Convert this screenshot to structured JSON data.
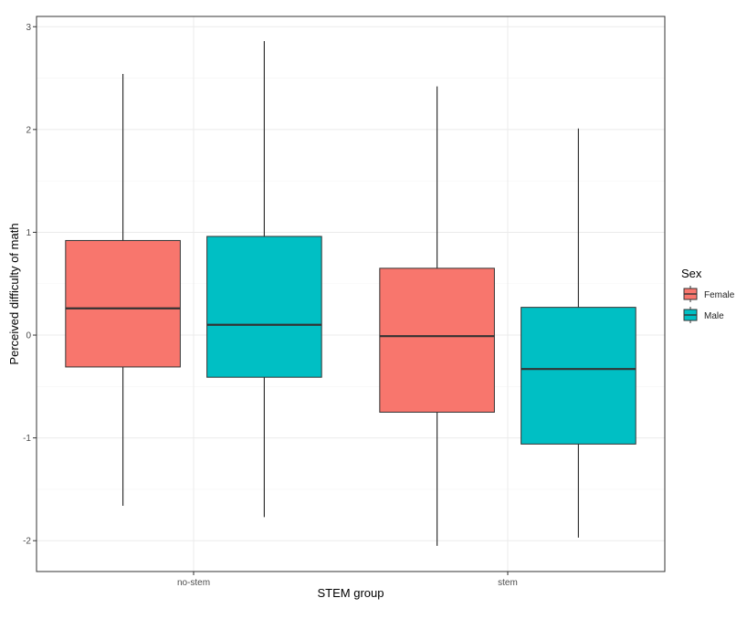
{
  "chart_data": {
    "type": "boxplot",
    "xlabel": "STEM group",
    "ylabel": "Perceived difficulty of math",
    "categories": [
      "no-stem",
      "stem"
    ],
    "ylim": [
      -2.3,
      3.1
    ],
    "yticks": [
      -2,
      -1,
      0,
      1,
      2,
      3
    ],
    "ytick_labels": [
      "-2",
      "-1",
      "0",
      "1",
      "2",
      "3"
    ],
    "grid": true,
    "legend": {
      "title": "Sex",
      "placement": "right",
      "entries": [
        "Female",
        "Male"
      ]
    },
    "colors": {
      "Female": "#F8766D",
      "Male": "#00BFC4"
    },
    "series": [
      {
        "name": "Female",
        "boxes": [
          {
            "category": "no-stem",
            "min": -1.66,
            "q1": -0.31,
            "median": 0.26,
            "q3": 0.92,
            "max": 2.54
          },
          {
            "category": "stem",
            "min": -2.05,
            "q1": -0.75,
            "median": -0.01,
            "q3": 0.65,
            "max": 2.42
          }
        ]
      },
      {
        "name": "Male",
        "boxes": [
          {
            "category": "no-stem",
            "min": -1.77,
            "q1": -0.41,
            "median": 0.1,
            "q3": 0.96,
            "max": 2.86
          },
          {
            "category": "stem",
            "min": -1.97,
            "q1": -1.06,
            "median": -0.33,
            "q3": 0.27,
            "max": 2.01
          }
        ]
      }
    ]
  }
}
